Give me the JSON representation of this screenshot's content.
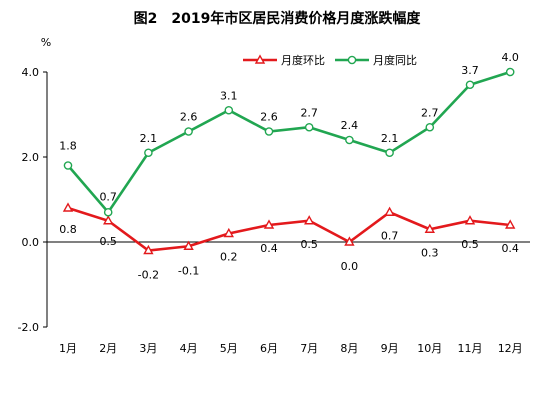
{
  "title": "图2　2019年市区居民消费价格月度涨跌幅度",
  "chart_data": {
    "type": "line",
    "title": "图2　2019年市区居民消费价格月度涨跌幅度",
    "ylabel": "%",
    "xlabel": "",
    "categories": [
      "1月",
      "2月",
      "3月",
      "4月",
      "5月",
      "6月",
      "7月",
      "8月",
      "9月",
      "10月",
      "11月",
      "12月"
    ],
    "ylim": [
      -2.0,
      4.0
    ],
    "yticks": [
      "4.0",
      "2.0",
      "0.0",
      "-2.0"
    ],
    "grid": false,
    "legend_position": "top-right",
    "series": [
      {
        "name": "月度环比",
        "color": "#e3191c",
        "marker": "triangle",
        "values": [
          0.8,
          0.5,
          -0.2,
          -0.1,
          0.2,
          0.4,
          0.5,
          0.0,
          0.7,
          0.3,
          0.5,
          0.4
        ],
        "labels": [
          "0.8",
          "0.5",
          "-0.2",
          "-0.1",
          "0.2",
          "0.4",
          "0.5",
          "0.0",
          "0.7",
          "0.3",
          "0.5",
          "0.4"
        ]
      },
      {
        "name": "月度同比",
        "color": "#21a651",
        "marker": "circle",
        "values": [
          1.8,
          0.7,
          2.1,
          2.6,
          3.1,
          2.6,
          2.7,
          2.4,
          2.1,
          2.7,
          3.7,
          4.0
        ],
        "labels": [
          "1.8",
          "0.7",
          "2.1",
          "2.6",
          "3.1",
          "2.6",
          "2.7",
          "2.4",
          "2.1",
          "2.7",
          "3.7",
          "4.0"
        ]
      }
    ]
  }
}
